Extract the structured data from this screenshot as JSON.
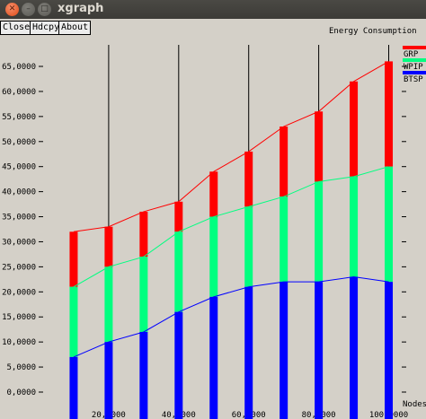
{
  "window": {
    "title": "xgraph",
    "close_glyph": "✕",
    "min_glyph": "–",
    "max_glyph": "□"
  },
  "toolbar": {
    "close_label": "Close",
    "hdcpy_label": "Hdcpy",
    "about_label": "About"
  },
  "chart_data": {
    "type": "bar",
    "title": "Energy Consumption",
    "xlabel": "Nodes",
    "ylabel": "",
    "xlim": [
      0,
      105000
    ],
    "ylim": [
      0,
      66000
    ],
    "grid": true,
    "legend_placement": "top-right",
    "x": [
      10000,
      20000,
      30000,
      40000,
      50000,
      60000,
      70000,
      80000,
      90000,
      100000
    ],
    "x_ticks": [
      {
        "value": 20000,
        "label": "20,0000"
      },
      {
        "value": 40000,
        "label": "40,0000"
      },
      {
        "value": 60000,
        "label": "60,0000"
      },
      {
        "value": 80000,
        "label": "80,0000"
      },
      {
        "value": 100000,
        "label": "100,0000"
      }
    ],
    "y_ticks": [
      {
        "value": 0,
        "label": "0,0000"
      },
      {
        "value": 5000,
        "label": "5,0000"
      },
      {
        "value": 10000,
        "label": "10,0000"
      },
      {
        "value": 15000,
        "label": "15,0000"
      },
      {
        "value": 20000,
        "label": "20,0000"
      },
      {
        "value": 25000,
        "label": "25,0000"
      },
      {
        "value": 30000,
        "label": "30,0000"
      },
      {
        "value": 35000,
        "label": "35,0000"
      },
      {
        "value": 40000,
        "label": "40,0000"
      },
      {
        "value": 45000,
        "label": "45,0000"
      },
      {
        "value": 50000,
        "label": "50,0000"
      },
      {
        "value": 55000,
        "label": "55,0000"
      },
      {
        "value": 60000,
        "label": "60,0000"
      },
      {
        "value": 65000,
        "label": "65,0000"
      }
    ],
    "series": [
      {
        "name": "GRP",
        "color": "#ff0000",
        "values": [
          32000,
          33000,
          36000,
          38000,
          44000,
          48000,
          53000,
          56000,
          62000,
          66000
        ]
      },
      {
        "name": "WPIP",
        "color": "#00ff80",
        "values": [
          21000,
          25000,
          27000,
          32000,
          35000,
          37000,
          39000,
          42000,
          43000,
          45000
        ]
      },
      {
        "name": "BTSP",
        "color": "#0000ff",
        "values": [
          7000,
          10000,
          12000,
          16000,
          19000,
          21000,
          22000,
          22000,
          23000,
          22000
        ]
      }
    ]
  }
}
